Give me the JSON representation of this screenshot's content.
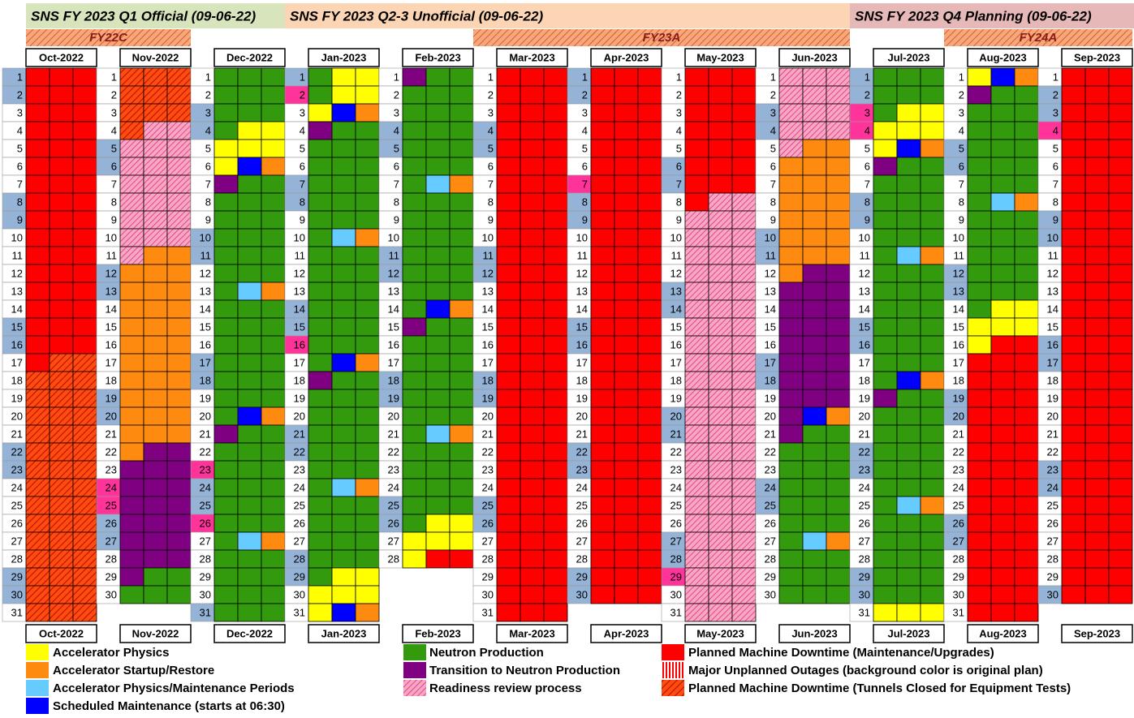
{
  "quarters": [
    {
      "label": "SNS FY 2023 Q1 Official (09-06-22)",
      "color": "#d8e4bc"
    },
    {
      "label": "SNS FY 2023 Q2-3 Unofficial (09-06-22)",
      "color": "#fcd5b4"
    },
    {
      "label": "SNS FY 2023 Q4 Planning (09-06-22)",
      "color": "#e6b8b7"
    }
  ],
  "run_periods": [
    {
      "label": "FY22C"
    },
    {
      "label": "FY23A"
    },
    {
      "label": "FY24A"
    }
  ],
  "palette": {
    "R": "#ff0000",
    "G": "#339a0e",
    "Y": "#ffff00",
    "O": "#ff8a10",
    "L": "#66ccff",
    "B": "#0000ff",
    "P": "#7f0080",
    "H": "url(#hatch-pink)",
    "X": "url(#hatch-red)",
    "V": "url(#stripe-red)"
  },
  "day_colors": {
    "w": "#ffffff",
    "e": "#95b3d7",
    "h": "#ff3399"
  },
  "months": [
    {
      "label": "Oct-2022",
      "days": [
        1,
        2,
        3,
        4,
        5,
        6,
        7,
        8,
        9,
        10,
        11,
        12,
        13,
        14,
        15,
        16,
        17,
        18,
        19,
        20,
        21,
        22,
        23,
        24,
        25,
        26,
        27,
        28,
        29,
        30,
        31
      ],
      "kinds": "eewwwwweewwwwweewwwwweewwwwweew",
      "shifts": [
        "RRR",
        "RRR",
        "RRR",
        "RRR",
        "RRR",
        "RRR",
        "RRR",
        "RRR",
        "RRR",
        "RRR",
        "RRR",
        "RRR",
        "RRR",
        "RRR",
        "RRR",
        "RRR",
        "RXX",
        "XXX",
        "XXX",
        "XXX",
        "XXX",
        "XXX",
        "XXX",
        "XXX",
        "XXX",
        "XXX",
        "XXX",
        "XXX",
        "XXX",
        "XXX",
        "XXX"
      ]
    },
    {
      "label": "Nov-2022",
      "days": [
        1,
        2,
        3,
        4,
        5,
        6,
        7,
        8,
        9,
        10,
        11,
        12,
        13,
        14,
        15,
        16,
        17,
        18,
        19,
        20,
        21,
        22,
        23,
        24,
        25,
        26,
        27,
        28,
        29,
        30
      ],
      "kinds": "wwwweewwwwweewwwwweewwwhheewww",
      "shifts": [
        "XXX",
        "XXX",
        "XXX",
        "XHH",
        "HHH",
        "HHH",
        "HHH",
        "HHH",
        "HHH",
        "HHH",
        "HOO",
        "OOO",
        "OOO",
        "OOO",
        "OOO",
        "OOO",
        "OOO",
        "OOO",
        "OOO",
        "OOO",
        "OOO",
        "OPP",
        "PPP",
        "PPP",
        "PPP",
        "PPP",
        "PPP",
        "PPP",
        "PGG",
        "GGG"
      ]
    },
    {
      "label": "Dec-2022",
      "days": [
        1,
        2,
        3,
        4,
        5,
        6,
        7,
        8,
        9,
        10,
        11,
        12,
        13,
        14,
        15,
        16,
        17,
        18,
        19,
        20,
        21,
        22,
        23,
        24,
        25,
        26,
        27,
        28,
        29,
        30,
        31
      ],
      "kinds": "wweewwwwweewwwwweewwwwheehwwwwe",
      "shifts": [
        "GGG",
        "GGG",
        "GGG",
        "GYY",
        "YYY",
        "YBO",
        "PGG",
        "GGG",
        "GGG",
        "GGG",
        "GGG",
        "GGG",
        "GLO",
        "GGG",
        "GGG",
        "GGG",
        "GGG",
        "GGG",
        "GGG",
        "GBO",
        "PGG",
        "GGG",
        "GGG",
        "GGG",
        "GGG",
        "GGG",
        "GLO",
        "GGG",
        "GGG",
        "GGG",
        "GGG"
      ]
    },
    {
      "label": "Jan-2023",
      "days": [
        1,
        2,
        3,
        4,
        5,
        6,
        7,
        8,
        9,
        10,
        11,
        12,
        13,
        14,
        15,
        16,
        17,
        18,
        19,
        20,
        21,
        22,
        23,
        24,
        25,
        26,
        27,
        28,
        29,
        30,
        31
      ],
      "kinds": "ehwwwweewwwwweehwwwweewwwwweeww",
      "shifts": [
        "GYY",
        "GYY",
        "YBO",
        "PGG",
        "GGG",
        "GGG",
        "GGG",
        "GGG",
        "GGG",
        "GLO",
        "GGG",
        "GGG",
        "GGG",
        "GGG",
        "GGG",
        "GGG",
        "GBO",
        "PGG",
        "GGG",
        "GGG",
        "GGG",
        "GGG",
        "GGG",
        "GLO",
        "GGG",
        "GGG",
        "GGG",
        "GGG",
        "GYY",
        "YYY",
        "YBO"
      ]
    },
    {
      "label": "Feb-2023",
      "days": [
        1,
        2,
        3,
        4,
        5,
        6,
        7,
        8,
        9,
        10,
        11,
        12,
        13,
        14,
        15,
        16,
        17,
        18,
        19,
        20,
        21,
        22,
        23,
        24,
        25,
        26,
        27,
        28
      ],
      "kinds": "wwweewwwwweewwwwweewwwwweeww",
      "shifts": [
        "PGG",
        "GGG",
        "GGG",
        "GGG",
        "GGG",
        "GGG",
        "GLO",
        "GGG",
        "GGG",
        "GGG",
        "GGG",
        "GGG",
        "GGG",
        "GBO",
        "PGG",
        "GGG",
        "GGG",
        "GGG",
        "GGG",
        "GGG",
        "GLO",
        "GGG",
        "GGG",
        "GGG",
        "GGG",
        "GYY",
        "YYY",
        "YRR"
      ]
    },
    {
      "label": "Mar-2023",
      "days": [
        1,
        2,
        3,
        4,
        5,
        6,
        7,
        8,
        9,
        10,
        11,
        12,
        13,
        14,
        15,
        16,
        17,
        18,
        19,
        20,
        21,
        22,
        23,
        24,
        25,
        26,
        27,
        28,
        29,
        30,
        31
      ],
      "kinds": "wwweewwwwweewwwwweewwwwweewwwww",
      "shifts": [
        "RRR",
        "RRR",
        "RRR",
        "RRR",
        "RRR",
        "RRR",
        "RRR",
        "RRR",
        "RRR",
        "RRR",
        "RRR",
        "RRR",
        "RRR",
        "RRR",
        "RRR",
        "RRR",
        "RRR",
        "RRR",
        "RRR",
        "RRR",
        "RRR",
        "RRR",
        "RRR",
        "RRR",
        "RRR",
        "RRR",
        "RRR",
        "RRR",
        "RRR",
        "RRR",
        "RRR"
      ]
    },
    {
      "label": "Apr-2023",
      "days": [
        1,
        2,
        3,
        4,
        5,
        6,
        7,
        8,
        9,
        10,
        11,
        12,
        13,
        14,
        15,
        16,
        17,
        18,
        19,
        20,
        21,
        22,
        23,
        24,
        25,
        26,
        27,
        28,
        29,
        30
      ],
      "kinds": "eewwwwheewwwwweewwwwweewwwwwee",
      "shifts": [
        "RRR",
        "RRR",
        "RRR",
        "RRR",
        "RRR",
        "RRR",
        "RRR",
        "RRR",
        "RRR",
        "RRR",
        "RRR",
        "RRR",
        "RRR",
        "RRR",
        "RRR",
        "RRR",
        "RRR",
        "RRR",
        "RRR",
        "RRR",
        "RRR",
        "RRR",
        "RRR",
        "RRR",
        "RRR",
        "RRR",
        "RRR",
        "RRR",
        "RRR",
        "RRR"
      ]
    },
    {
      "label": "May-2023",
      "days": [
        1,
        2,
        3,
        4,
        5,
        6,
        7,
        8,
        9,
        10,
        11,
        12,
        13,
        14,
        15,
        16,
        17,
        18,
        19,
        20,
        21,
        22,
        23,
        24,
        25,
        26,
        27,
        28,
        29,
        30,
        31
      ],
      "kinds": "wwwwweewwwwweewwwwweewwwwweehww",
      "shifts": [
        "RRR",
        "RRR",
        "RRR",
        "RRR",
        "RRR",
        "RRR",
        "RRR",
        "RHH",
        "HHH",
        "HHH",
        "HHH",
        "HHH",
        "HHH",
        "HHH",
        "HHH",
        "HHH",
        "HHH",
        "HHH",
        "HHH",
        "HHH",
        "HHH",
        "HHH",
        "HHH",
        "HHH",
        "HHH",
        "HHH",
        "HHH",
        "HHH",
        "HHH",
        "HHH",
        "HHH"
      ]
    },
    {
      "label": "Jun-2023",
      "days": [
        1,
        2,
        3,
        4,
        5,
        6,
        7,
        8,
        9,
        10,
        11,
        12,
        13,
        14,
        15,
        16,
        17,
        18,
        19,
        20,
        21,
        22,
        23,
        24,
        25,
        26,
        27,
        28,
        29,
        30
      ],
      "kinds": "wweewwwwweewwwwweewwwwweewwwww",
      "shifts": [
        "HHH",
        "HHH",
        "HHH",
        "HHH",
        "HOO",
        "OOO",
        "OOO",
        "OOO",
        "OOO",
        "OOO",
        "OOO",
        "OPP",
        "PPP",
        "PPP",
        "PPP",
        "PPP",
        "PPP",
        "PPP",
        "PPP",
        "PBO",
        "PGG",
        "GGG",
        "GGG",
        "GGG",
        "GGG",
        "GGG",
        "GLO",
        "GGG",
        "GGG",
        "GGG"
      ]
    },
    {
      "label": "Jul-2023",
      "days": [
        1,
        2,
        3,
        4,
        5,
        6,
        7,
        8,
        9,
        10,
        11,
        12,
        13,
        14,
        15,
        16,
        17,
        18,
        19,
        20,
        21,
        22,
        23,
        24,
        25,
        26,
        27,
        28,
        29,
        30,
        31
      ],
      "kinds": "eehhwwweewwwwweewwwwweewwwwweew",
      "shifts": [
        "GGG",
        "GGG",
        "GYY",
        "YYY",
        "YBO",
        "PGG",
        "GGG",
        "GGG",
        "GGG",
        "GGG",
        "GLO",
        "GGG",
        "GGG",
        "GGG",
        "GGG",
        "GGG",
        "GGG",
        "GBO",
        "PGG",
        "GGG",
        "GGG",
        "GGG",
        "GGG",
        "GGG",
        "GLO",
        "GGG",
        "GGG",
        "GGG",
        "GGG",
        "GGG",
        "YYY"
      ]
    },
    {
      "label": "Aug-2023",
      "days": [
        1,
        2,
        3,
        4,
        5,
        6,
        7,
        8,
        9,
        10,
        11,
        12,
        13,
        14,
        15,
        16,
        17,
        18,
        19,
        20,
        21,
        22,
        23,
        24,
        25,
        26,
        27,
        28,
        29,
        30,
        31
      ],
      "kinds": "wwwweewwwwweewwwwweewwwwweewwww",
      "shifts": [
        "YBO",
        "PGG",
        "GGG",
        "GGG",
        "GGG",
        "GGG",
        "GGG",
        "GLO",
        "GGG",
        "GGG",
        "GGG",
        "GGG",
        "GGG",
        "GYY",
        "YYY",
        "YRR",
        "RRR",
        "RRR",
        "RRR",
        "RRR",
        "RRR",
        "RRR",
        "RRR",
        "RRR",
        "RRR",
        "RRR",
        "RRR",
        "RRR",
        "RRR",
        "RRR",
        "RRR"
      ]
    },
    {
      "label": "Sep-2023",
      "days": [
        1,
        2,
        3,
        4,
        5,
        6,
        7,
        8,
        9,
        10,
        11,
        12,
        13,
        14,
        15,
        16,
        17,
        18,
        19,
        20,
        21,
        22,
        23,
        24,
        25,
        26,
        27,
        28,
        29,
        30
      ],
      "kinds": "weehwwwweewwwwweewwwwweewwwwwe",
      "shifts": [
        "RRR",
        "RRR",
        "RRR",
        "RRR",
        "RRR",
        "RRR",
        "RRR",
        "RRR",
        "RRR",
        "RRR",
        "RRR",
        "RRR",
        "RRR",
        "RRR",
        "RRR",
        "RRR",
        "RRR",
        "RRR",
        "RRR",
        "RRR",
        "RRR",
        "RRR",
        "RRR",
        "RRR",
        "RRR",
        "RRR",
        "RRR",
        "RRR",
        "RRR",
        "RRR"
      ]
    }
  ],
  "legend": [
    [
      {
        "code": "Y",
        "label": "Accelerator Physics"
      },
      {
        "code": "O",
        "label": "Accelerator Startup/Restore"
      },
      {
        "code": "L",
        "label": "Accelerator Physics/Maintenance Periods"
      },
      {
        "code": "B",
        "label": "Scheduled Maintenance (starts at 06:30)"
      }
    ],
    [
      {
        "code": "G",
        "label": "Neutron Production"
      },
      {
        "code": "P",
        "label": "Transition to Neutron Production"
      },
      {
        "code": "H",
        "label": "Readiness review process"
      }
    ],
    [
      {
        "code": "R",
        "label": "Planned Machine Downtime (Maintenance/Upgrades)"
      },
      {
        "code": "V",
        "label": "Major Unplanned Outages (background color is original plan)"
      },
      {
        "code": "X",
        "label": "Planned Machine Downtime (Tunnels Closed for Equipment Tests)"
      }
    ]
  ]
}
